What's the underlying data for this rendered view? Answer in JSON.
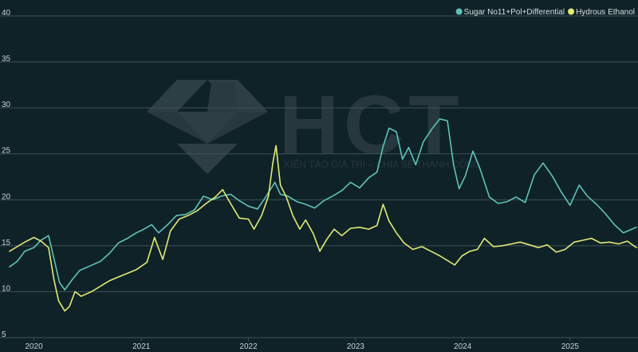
{
  "colors": {
    "background": "#0f2228",
    "grid": "#3e5258",
    "sugar": "#5fc3b6",
    "ethanol": "#e2ea74",
    "watermark": "#3a4b50"
  },
  "watermark": {
    "brand": "HCT",
    "tagline": "KIẾN TẠO GIÁ TRỊ – CHIA SẺ THÀNH CÔNG"
  },
  "chart_data": {
    "type": "line",
    "title": "",
    "xlabel": "",
    "ylabel": "",
    "ylim": [
      5,
      40
    ],
    "xlim": [
      "2019-10-10",
      "2025-08-15"
    ],
    "y_ticks": [
      5,
      10,
      15,
      20,
      25,
      30,
      35,
      40
    ],
    "x_ticks": [
      "2020",
      "2021",
      "2022",
      "2023",
      "2024",
      "2025"
    ],
    "x_tick_dates": [
      "2020-01-01",
      "2021-01-01",
      "2022-01-01",
      "2023-01-01",
      "2024-01-01",
      "2025-01-01"
    ],
    "grid": true,
    "legend_position": "top-right",
    "series": [
      {
        "name": "Sugar No11+Pol+Differential",
        "color": "#5fc3b6",
        "points": [
          [
            "2019-10-10",
            12.7
          ],
          [
            "2019-11-05",
            13.3
          ],
          [
            "2019-12-01",
            14.4
          ],
          [
            "2020-01-01",
            14.8
          ],
          [
            "2020-01-25",
            15.6
          ],
          [
            "2020-02-20",
            16.1
          ],
          [
            "2020-03-10",
            13.5
          ],
          [
            "2020-03-28",
            11.0
          ],
          [
            "2020-04-15",
            10.2
          ],
          [
            "2020-05-10",
            11.3
          ],
          [
            "2020-06-05",
            12.3
          ],
          [
            "2020-07-10",
            12.8
          ],
          [
            "2020-08-15",
            13.3
          ],
          [
            "2020-09-15",
            14.2
          ],
          [
            "2020-10-15",
            15.3
          ],
          [
            "2020-11-15",
            15.8
          ],
          [
            "2020-12-15",
            16.4
          ],
          [
            "2021-01-10",
            16.8
          ],
          [
            "2021-02-05",
            17.3
          ],
          [
            "2021-03-01",
            16.4
          ],
          [
            "2021-04-01",
            17.3
          ],
          [
            "2021-05-01",
            18.3
          ],
          [
            "2021-06-01",
            18.4
          ],
          [
            "2021-07-01",
            18.9
          ],
          [
            "2021-08-01",
            20.4
          ],
          [
            "2021-09-01",
            20.0
          ],
          [
            "2021-10-01",
            20.4
          ],
          [
            "2021-11-01",
            20.6
          ],
          [
            "2021-12-01",
            19.9
          ],
          [
            "2022-01-01",
            19.3
          ],
          [
            "2022-02-01",
            19.0
          ],
          [
            "2022-03-01",
            20.3
          ],
          [
            "2022-04-01",
            21.9
          ],
          [
            "2022-04-20",
            20.6
          ],
          [
            "2022-05-15",
            20.4
          ],
          [
            "2022-06-15",
            19.8
          ],
          [
            "2022-07-15",
            19.5
          ],
          [
            "2022-08-15",
            19.1
          ],
          [
            "2022-09-15",
            19.9
          ],
          [
            "2022-10-15",
            20.4
          ],
          [
            "2022-11-15",
            21.0
          ],
          [
            "2022-12-15",
            21.9
          ],
          [
            "2023-01-15",
            21.3
          ],
          [
            "2023-02-15",
            22.4
          ],
          [
            "2023-03-15",
            23.0
          ],
          [
            "2023-04-05",
            25.8
          ],
          [
            "2023-04-25",
            27.8
          ],
          [
            "2023-05-20",
            27.4
          ],
          [
            "2023-06-10",
            24.4
          ],
          [
            "2023-07-01",
            25.7
          ],
          [
            "2023-07-25",
            23.8
          ],
          [
            "2023-08-20",
            26.3
          ],
          [
            "2023-09-20",
            27.8
          ],
          [
            "2023-10-15",
            28.8
          ],
          [
            "2023-11-10",
            28.6
          ],
          [
            "2023-12-01",
            23.8
          ],
          [
            "2023-12-20",
            21.2
          ],
          [
            "2024-01-10",
            22.6
          ],
          [
            "2024-02-05",
            25.3
          ],
          [
            "2024-03-01",
            23.3
          ],
          [
            "2024-04-01",
            20.3
          ],
          [
            "2024-05-01",
            19.6
          ],
          [
            "2024-06-01",
            19.8
          ],
          [
            "2024-07-01",
            20.3
          ],
          [
            "2024-08-01",
            19.7
          ],
          [
            "2024-09-01",
            22.7
          ],
          [
            "2024-10-01",
            24.0
          ],
          [
            "2024-11-01",
            22.6
          ],
          [
            "2024-12-01",
            20.9
          ],
          [
            "2025-01-01",
            19.4
          ],
          [
            "2025-02-01",
            21.6
          ],
          [
            "2025-03-01",
            20.4
          ],
          [
            "2025-04-01",
            19.5
          ],
          [
            "2025-05-01",
            18.5
          ],
          [
            "2025-06-01",
            17.3
          ],
          [
            "2025-07-01",
            16.4
          ],
          [
            "2025-08-15",
            17.0
          ]
        ]
      },
      {
        "name": "Hydrous Ethanol",
        "color": "#e2ea74",
        "points": [
          [
            "2019-10-10",
            14.4
          ],
          [
            "2019-11-05",
            14.9
          ],
          [
            "2019-12-01",
            15.4
          ],
          [
            "2020-01-01",
            15.9
          ],
          [
            "2020-01-25",
            15.5
          ],
          [
            "2020-02-20",
            14.8
          ],
          [
            "2020-03-10",
            11.2
          ],
          [
            "2020-03-25",
            9.0
          ],
          [
            "2020-04-15",
            7.9
          ],
          [
            "2020-05-01",
            8.4
          ],
          [
            "2020-05-20",
            10.0
          ],
          [
            "2020-06-10",
            9.5
          ],
          [
            "2020-07-15",
            10.0
          ],
          [
            "2020-08-15",
            10.6
          ],
          [
            "2020-09-15",
            11.2
          ],
          [
            "2020-10-15",
            11.6
          ],
          [
            "2020-11-15",
            12.0
          ],
          [
            "2020-12-15",
            12.4
          ],
          [
            "2021-01-20",
            13.2
          ],
          [
            "2021-02-15",
            15.9
          ],
          [
            "2021-03-01",
            14.7
          ],
          [
            "2021-03-15",
            13.5
          ],
          [
            "2021-04-10",
            16.6
          ],
          [
            "2021-05-10",
            17.9
          ],
          [
            "2021-06-10",
            18.3
          ],
          [
            "2021-07-10",
            18.8
          ],
          [
            "2021-08-10",
            19.6
          ],
          [
            "2021-09-10",
            20.3
          ],
          [
            "2021-10-05",
            21.1
          ],
          [
            "2021-11-01",
            19.6
          ],
          [
            "2021-12-01",
            18.0
          ],
          [
            "2022-01-01",
            17.9
          ],
          [
            "2022-01-20",
            16.8
          ],
          [
            "2022-02-15",
            18.3
          ],
          [
            "2022-03-10",
            20.4
          ],
          [
            "2022-03-25",
            24.0
          ],
          [
            "2022-04-05",
            25.9
          ],
          [
            "2022-04-20",
            21.6
          ],
          [
            "2022-05-10",
            20.3
          ],
          [
            "2022-06-01",
            18.3
          ],
          [
            "2022-06-25",
            16.8
          ],
          [
            "2022-07-15",
            17.8
          ],
          [
            "2022-08-10",
            16.3
          ],
          [
            "2022-09-01",
            14.4
          ],
          [
            "2022-09-25",
            15.7
          ],
          [
            "2022-10-20",
            16.8
          ],
          [
            "2022-11-15",
            16.1
          ],
          [
            "2022-12-15",
            16.9
          ],
          [
            "2023-01-15",
            17.0
          ],
          [
            "2023-02-15",
            16.8
          ],
          [
            "2023-03-15",
            17.2
          ],
          [
            "2023-04-05",
            19.5
          ],
          [
            "2023-04-25",
            17.7
          ],
          [
            "2023-05-20",
            16.4
          ],
          [
            "2023-06-15",
            15.3
          ],
          [
            "2023-07-15",
            14.6
          ],
          [
            "2023-08-15",
            14.9
          ],
          [
            "2023-09-15",
            14.4
          ],
          [
            "2023-10-15",
            13.9
          ],
          [
            "2023-11-10",
            13.4
          ],
          [
            "2023-12-05",
            12.9
          ],
          [
            "2023-12-30",
            13.9
          ],
          [
            "2024-01-25",
            14.4
          ],
          [
            "2024-02-20",
            14.6
          ],
          [
            "2024-03-15",
            15.8
          ],
          [
            "2024-04-15",
            14.9
          ],
          [
            "2024-05-15",
            15.0
          ],
          [
            "2024-06-15",
            15.2
          ],
          [
            "2024-07-15",
            15.4
          ],
          [
            "2024-08-15",
            15.1
          ],
          [
            "2024-09-15",
            14.8
          ],
          [
            "2024-10-15",
            15.1
          ],
          [
            "2024-11-15",
            14.3
          ],
          [
            "2024-12-15",
            14.6
          ],
          [
            "2025-01-15",
            15.4
          ],
          [
            "2025-02-15",
            15.6
          ],
          [
            "2025-03-15",
            15.8
          ],
          [
            "2025-04-15",
            15.3
          ],
          [
            "2025-05-15",
            15.4
          ],
          [
            "2025-06-15",
            15.2
          ],
          [
            "2025-07-15",
            15.5
          ],
          [
            "2025-08-15",
            14.8
          ]
        ]
      }
    ]
  }
}
